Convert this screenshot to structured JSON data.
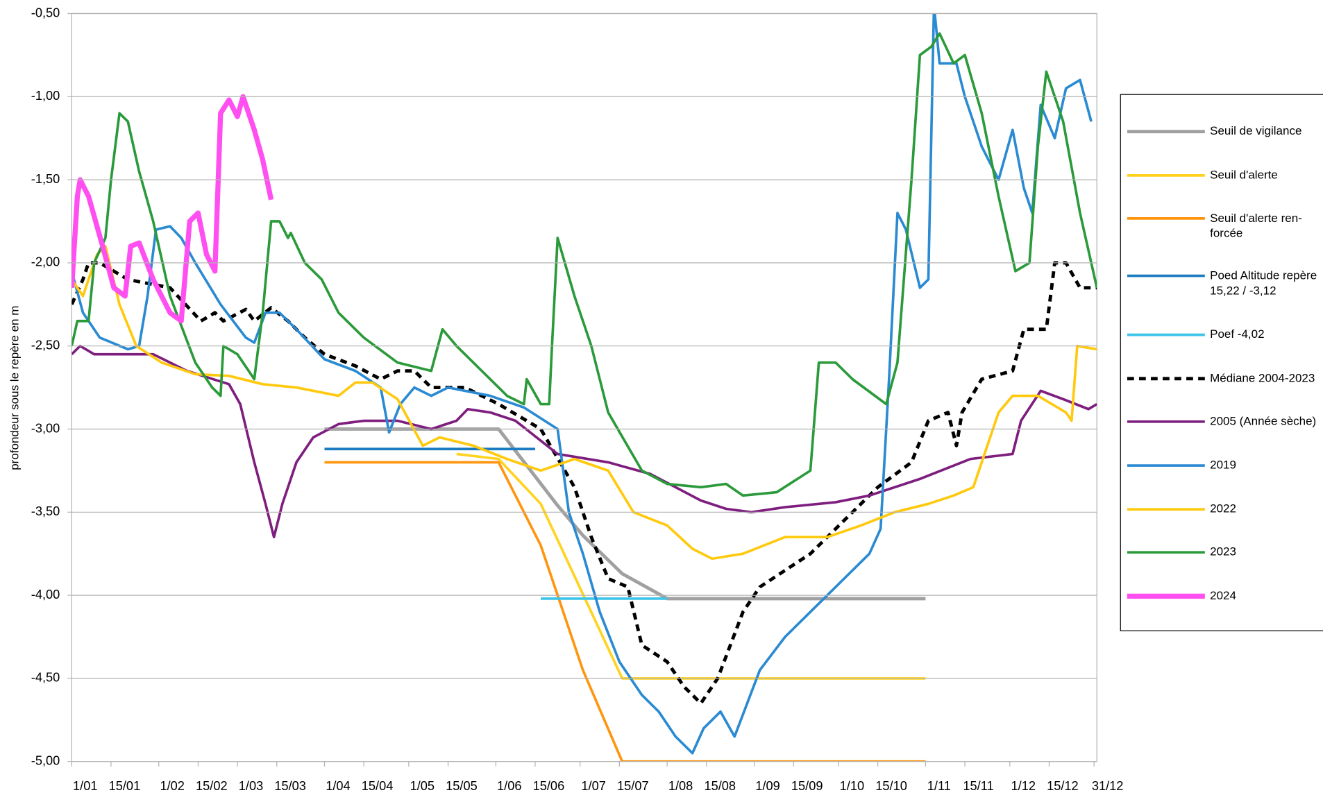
{
  "chart_data": {
    "type": "line",
    "y_label": "profondeur sous le repère en m",
    "xlim": [
      0,
      365
    ],
    "ylim": [
      -5,
      -0.5
    ],
    "grid": true,
    "legend": "right",
    "xticks": [
      {
        "value": 0,
        "label": "1/01"
      },
      {
        "value": 14,
        "label": "15/01"
      },
      {
        "value": 31,
        "label": "1/02"
      },
      {
        "value": 45,
        "label": "15/02"
      },
      {
        "value": 59,
        "label": "1/03"
      },
      {
        "value": 73,
        "label": "15/03"
      },
      {
        "value": 90,
        "label": "1/04"
      },
      {
        "value": 104,
        "label": "15/04"
      },
      {
        "value": 120,
        "label": "1/05"
      },
      {
        "value": 134,
        "label": "15/05"
      },
      {
        "value": 151,
        "label": "1/06"
      },
      {
        "value": 165,
        "label": "15/06"
      },
      {
        "value": 181,
        "label": "1/07"
      },
      {
        "value": 195,
        "label": "15/07"
      },
      {
        "value": 212,
        "label": "1/08"
      },
      {
        "value": 226,
        "label": "15/08"
      },
      {
        "value": 243,
        "label": "1/09"
      },
      {
        "value": 257,
        "label": "15/09"
      },
      {
        "value": 273,
        "label": "1/10"
      },
      {
        "value": 287,
        "label": "15/10"
      },
      {
        "value": 304,
        "label": "1/11"
      },
      {
        "value": 318,
        "label": "15/11"
      },
      {
        "value": 334,
        "label": "1/12"
      },
      {
        "value": 348,
        "label": "15/12"
      },
      {
        "value": 364,
        "label": "31/12"
      }
    ],
    "yticks": [
      {
        "value": -0.5,
        "label": "-0,50"
      },
      {
        "value": -1,
        "label": "-1,00"
      },
      {
        "value": -1.5,
        "label": "-1,50"
      },
      {
        "value": -2,
        "label": "-2,00"
      },
      {
        "value": -2.5,
        "label": "-2,50"
      },
      {
        "value": -3,
        "label": "-3,00"
      },
      {
        "value": -3.5,
        "label": "-3,50"
      },
      {
        "value": -4,
        "label": "-4,00"
      },
      {
        "value": -4.5,
        "label": "-4,50"
      },
      {
        "value": -5,
        "label": "-5,00"
      }
    ],
    "series": [
      {
        "name": "Seuil de vigilance",
        "color": "#a0a0a0",
        "line_width": 4,
        "x": [
          90,
          152,
          173,
          182,
          196,
          212,
          304
        ],
        "values": [
          -3,
          -3,
          -3.46,
          -3.64,
          -3.87,
          -4.02,
          -4.02
        ]
      },
      {
        "name": "Seuil d'alerte",
        "color": "#ffd320",
        "line_width": 3,
        "x": [
          137,
          152,
          167,
          196,
          304
        ],
        "values": [
          -3.15,
          -3.18,
          -3.45,
          -4.5,
          -4.5
        ]
      },
      {
        "name": "Seuil d'alerte ren-\nforcée",
        "color": "#ff950e",
        "line_width": 3,
        "x": [
          90,
          152,
          167,
          182,
          196,
          304
        ],
        "values": [
          -3.2,
          -3.2,
          -3.7,
          -4.45,
          -5,
          -5
        ]
      },
      {
        "name": "Poed Altitude repère\n15,22 / -3,12",
        "color": "#1c7cc2",
        "line_width": 3,
        "x": [
          90,
          165
        ],
        "values": [
          -3.12,
          -3.12
        ]
      },
      {
        "name": "Poef -4,02",
        "color": "#3cc4e8",
        "line_width": 3,
        "x": [
          167,
          212
        ],
        "values": [
          -4.02,
          -4.02
        ]
      },
      {
        "name": "Médiane 2004-2023",
        "color": "#000000",
        "line_width": 4,
        "dashed": true,
        "x": [
          0,
          4,
          6,
          10,
          20,
          35,
          46,
          51,
          54,
          62,
          65,
          71,
          77,
          83,
          90,
          101,
          110,
          116,
          122,
          128,
          140,
          152,
          167,
          179,
          185,
          191,
          198,
          203,
          212,
          218,
          224,
          230,
          239,
          245,
          254,
          263,
          275,
          287,
          299,
          305,
          312,
          315,
          317,
          324,
          335,
          339,
          347,
          350,
          354,
          359,
          365
        ],
        "values": [
          -2.25,
          -2.1,
          -2,
          -2,
          -2.1,
          -2.15,
          -2.35,
          -2.3,
          -2.35,
          -2.28,
          -2.35,
          -2.27,
          -2.35,
          -2.45,
          -2.55,
          -2.62,
          -2.7,
          -2.65,
          -2.65,
          -2.75,
          -2.75,
          -2.85,
          -3,
          -3.35,
          -3.65,
          -3.9,
          -3.95,
          -4.3,
          -4.4,
          -4.55,
          -4.65,
          -4.5,
          -4.1,
          -3.95,
          -3.85,
          -3.75,
          -3.55,
          -3.35,
          -3.2,
          -2.95,
          -2.9,
          -3.1,
          -2.9,
          -2.7,
          -2.65,
          -2.4,
          -2.4,
          -2,
          -2,
          -2.15,
          -2.15
        ]
      },
      {
        "name": "2005 (Année sèche)",
        "color": "#7e1e7e",
        "line_width": 3,
        "x": [
          0,
          3,
          8,
          20,
          29,
          35,
          41,
          56,
          60,
          65,
          69,
          72,
          75,
          80,
          86,
          95,
          104,
          116,
          128,
          137,
          141,
          149,
          158,
          173,
          191,
          206,
          224,
          233,
          242,
          254,
          272,
          284,
          293,
          302,
          314,
          320,
          335,
          338,
          345,
          353,
          362,
          365
        ],
        "values": [
          -2.55,
          -2.5,
          -2.55,
          -2.55,
          -2.55,
          -2.6,
          -2.65,
          -2.73,
          -2.85,
          -3.2,
          -3.45,
          -3.65,
          -3.45,
          -3.2,
          -3.05,
          -2.97,
          -2.95,
          -2.95,
          -3,
          -2.95,
          -2.88,
          -2.9,
          -2.95,
          -3.15,
          -3.2,
          -3.27,
          -3.43,
          -3.48,
          -3.5,
          -3.47,
          -3.44,
          -3.4,
          -3.35,
          -3.3,
          -3.22,
          -3.18,
          -3.15,
          -2.95,
          -2.77,
          -2.82,
          -2.88,
          -2.85
        ]
      },
      {
        "name": "2019",
        "color": "#2a8ad2",
        "line_width": 3,
        "x": [
          0,
          4,
          10,
          20,
          24,
          27,
          30,
          35,
          39,
          44,
          53,
          62,
          65,
          69,
          74,
          80,
          90,
          101,
          110,
          113,
          117,
          122,
          128,
          134,
          149,
          161,
          173,
          177,
          182,
          188,
          195,
          203,
          209,
          215,
          221,
          225,
          231,
          236,
          245,
          254,
          266,
          275,
          284,
          288,
          291,
          294,
          297,
          302,
          305,
          307,
          309,
          315,
          318,
          324,
          330,
          335,
          339,
          342,
          345,
          350,
          354,
          359,
          363
        ],
        "values": [
          -2.05,
          -2.3,
          -2.45,
          -2.52,
          -2.5,
          -2.2,
          -1.8,
          -1.78,
          -1.85,
          -2,
          -2.25,
          -2.45,
          -2.48,
          -2.3,
          -2.3,
          -2.4,
          -2.58,
          -2.65,
          -2.75,
          -3.02,
          -2.85,
          -2.75,
          -2.8,
          -2.75,
          -2.8,
          -2.87,
          -3,
          -3.5,
          -3.75,
          -4.1,
          -4.4,
          -4.6,
          -4.7,
          -4.85,
          -4.95,
          -4.8,
          -4.7,
          -4.85,
          -4.45,
          -4.25,
          -4.05,
          -3.9,
          -3.75,
          -3.6,
          -2.7,
          -1.7,
          -1.8,
          -2.15,
          -2.1,
          -0.45,
          -0.8,
          -0.8,
          -1,
          -1.3,
          -1.5,
          -1.2,
          -1.55,
          -1.7,
          -1.05,
          -1.25,
          -0.95,
          -0.9,
          -1.15
        ]
      },
      {
        "name": "2022",
        "color": "#ffc90e",
        "line_width": 3,
        "x": [
          0,
          4,
          9,
          12,
          17,
          23,
          32,
          44,
          56,
          68,
          80,
          95,
          101,
          107,
          116,
          125,
          131,
          143,
          155,
          167,
          179,
          191,
          200,
          212,
          221,
          228,
          239,
          254,
          269,
          281,
          293,
          305,
          314,
          321,
          326,
          330,
          335,
          344,
          354,
          356,
          358,
          365
        ],
        "values": [
          -2.1,
          -2.2,
          -1.95,
          -1.9,
          -2.25,
          -2.5,
          -2.6,
          -2.67,
          -2.68,
          -2.73,
          -2.75,
          -2.8,
          -2.72,
          -2.72,
          -2.82,
          -3.1,
          -3.05,
          -3.1,
          -3.18,
          -3.25,
          -3.18,
          -3.25,
          -3.5,
          -3.58,
          -3.72,
          -3.78,
          -3.75,
          -3.65,
          -3.65,
          -3.58,
          -3.5,
          -3.45,
          -3.4,
          -3.35,
          -3.1,
          -2.9,
          -2.8,
          -2.8,
          -2.9,
          -2.95,
          -2.5,
          -2.52
        ]
      },
      {
        "name": "2023",
        "color": "#2a9a3a",
        "line_width": 3,
        "x": [
          0,
          2,
          6,
          8,
          12,
          14,
          17,
          20,
          24,
          29,
          35,
          44,
          50,
          53,
          54,
          59,
          65,
          68,
          71,
          74,
          77,
          78,
          83,
          89,
          95,
          104,
          116,
          128,
          132,
          137,
          146,
          155,
          161,
          162,
          167,
          170,
          171,
          173,
          179,
          185,
          191,
          203,
          212,
          224,
          233,
          239,
          251,
          263,
          266,
          272,
          278,
          290,
          294,
          299,
          302,
          306,
          309,
          314,
          318,
          324,
          330,
          336,
          341,
          344,
          347,
          353,
          359,
          365
        ],
        "values": [
          -2.5,
          -2.35,
          -2.35,
          -2,
          -1.85,
          -1.5,
          -1.1,
          -1.15,
          -1.45,
          -1.75,
          -2.2,
          -2.6,
          -2.75,
          -2.8,
          -2.5,
          -2.55,
          -2.7,
          -2.3,
          -1.75,
          -1.75,
          -1.85,
          -1.82,
          -2,
          -2.1,
          -2.3,
          -2.45,
          -2.6,
          -2.65,
          -2.4,
          -2.5,
          -2.65,
          -2.8,
          -2.85,
          -2.7,
          -2.85,
          -2.85,
          -2.5,
          -1.85,
          -2.2,
          -2.5,
          -2.9,
          -3.25,
          -3.33,
          -3.35,
          -3.33,
          -3.4,
          -3.38,
          -3.25,
          -2.6,
          -2.6,
          -2.7,
          -2.85,
          -2.6,
          -1.5,
          -0.75,
          -0.7,
          -0.62,
          -0.8,
          -0.75,
          -1.1,
          -1.6,
          -2.05,
          -2,
          -1.3,
          -0.85,
          -1.15,
          -1.7,
          -2.15
        ]
      },
      {
        "name": "2024",
        "color": "#ff4ff0",
        "line_width": 6,
        "x": [
          0,
          2,
          3,
          6,
          11,
          15,
          19,
          21,
          24,
          29,
          35,
          39,
          42,
          45,
          48,
          51,
          53,
          56,
          59,
          61,
          65,
          68,
          71
        ],
        "values": [
          -2.15,
          -1.6,
          -1.5,
          -1.6,
          -1.9,
          -2.15,
          -2.2,
          -1.9,
          -1.88,
          -2.1,
          -2.3,
          -2.35,
          -1.75,
          -1.7,
          -1.95,
          -2.05,
          -1.1,
          -1.02,
          -1.12,
          -1,
          -1.2,
          -1.38,
          -1.62
        ]
      }
    ]
  }
}
